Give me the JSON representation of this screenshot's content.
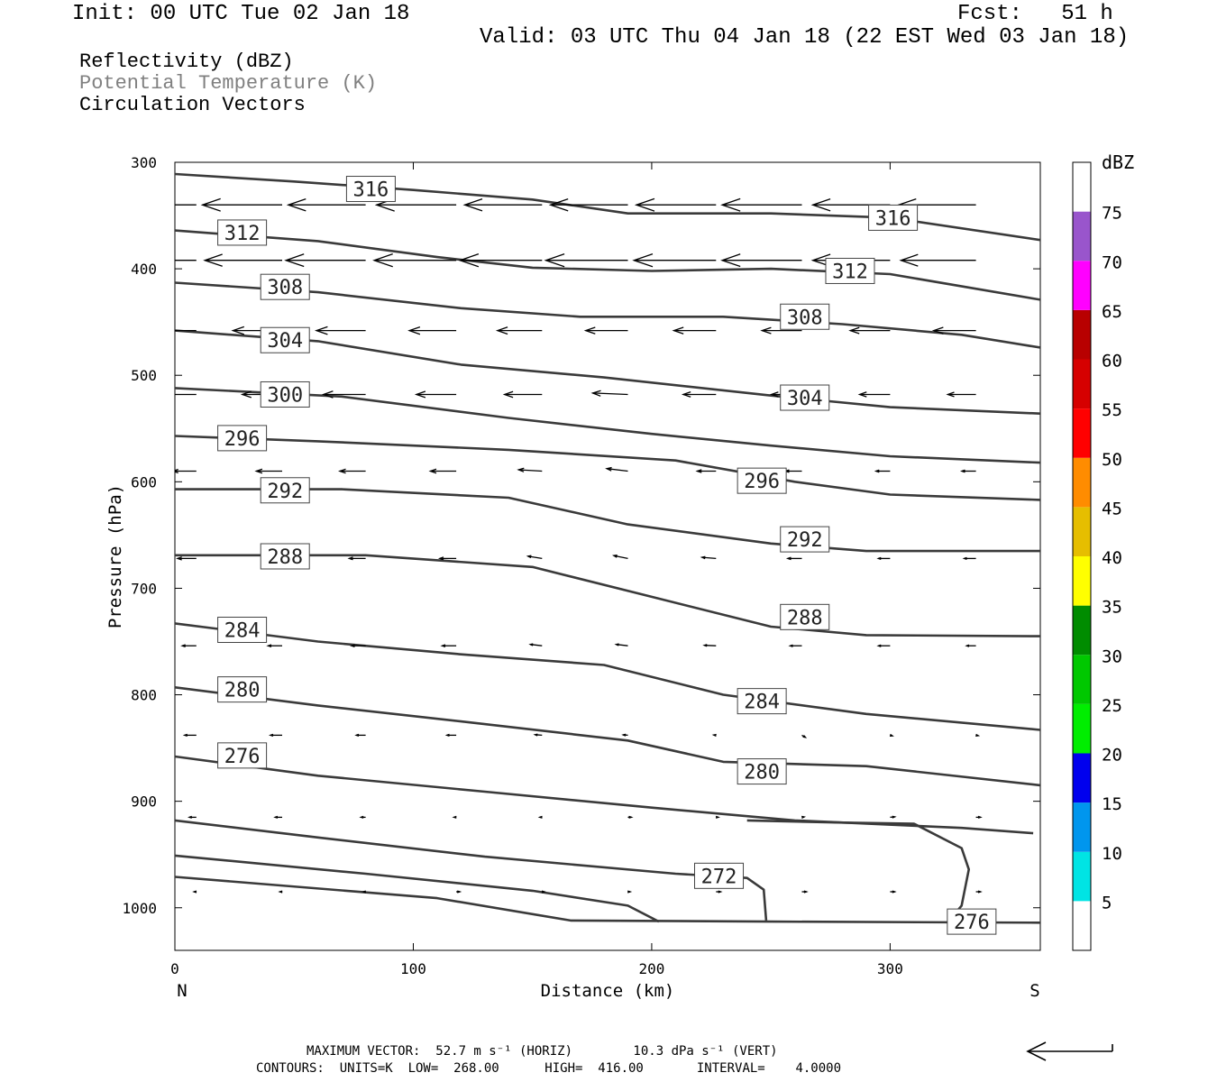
{
  "header": {
    "init": "Init: 00 UTC Tue 02 Jan 18",
    "fcst": "Fcst:   51 h",
    "valid": "Valid: 03 UTC Thu 04 Jan 18 (22 EST Wed 03 Jan 18)"
  },
  "legend": {
    "line1": "Reflectivity (dBZ)",
    "line2": "Potential Temperature (K)",
    "line3": "Circulation Vectors"
  },
  "colors": {
    "contour": "#3a3a3a",
    "legend2": "#808080",
    "vectors": "#000000"
  },
  "chart_data": {
    "type": "contour",
    "xlabel": "Distance (km)",
    "ylabel": "Pressure (hPa)",
    "xlim": [
      0,
      363
    ],
    "ylim": [
      1040,
      300
    ],
    "xticks": [
      0,
      100,
      200,
      300
    ],
    "yticks": [
      300,
      400,
      500,
      600,
      700,
      800,
      900,
      1000
    ],
    "x_end_labels": {
      "left": "N",
      "right": "S"
    },
    "colorbar": {
      "title": "dBZ",
      "levels": [
        5,
        10,
        15,
        20,
        25,
        30,
        35,
        40,
        45,
        50,
        55,
        60,
        65,
        70,
        75
      ],
      "colors": [
        "#00e4e4",
        "#0096ee",
        "#0000ee",
        "#00ee00",
        "#00c800",
        "#008c00",
        "#ffff00",
        "#e6be00",
        "#ff8c00",
        "#ff0000",
        "#d60000",
        "#b80000",
        "#ff00ff",
        "#9955cc",
        "#ffffff"
      ]
    },
    "contours": [
      {
        "label": "316",
        "points": [
          [
            0,
            311
          ],
          [
            50,
            318
          ],
          [
            100,
            326
          ],
          [
            150,
            335
          ],
          [
            190,
            348
          ],
          [
            250,
            348
          ],
          [
            300,
            352
          ],
          [
            363,
            373
          ]
        ],
        "label_positions": [
          [
            72,
            325
          ],
          [
            291,
            352
          ]
        ]
      },
      {
        "label": "312",
        "points": [
          [
            0,
            364
          ],
          [
            60,
            374
          ],
          [
            110,
            389
          ],
          [
            150,
            399
          ],
          [
            200,
            402
          ],
          [
            250,
            400
          ],
          [
            300,
            405
          ],
          [
            363,
            429
          ]
        ],
        "label_positions": [
          [
            18,
            366
          ],
          [
            273,
            402
          ]
        ]
      },
      {
        "label": "308",
        "points": [
          [
            0,
            413
          ],
          [
            60,
            422
          ],
          [
            120,
            437
          ],
          [
            170,
            445
          ],
          [
            230,
            445
          ],
          [
            280,
            452
          ],
          [
            330,
            462
          ],
          [
            363,
            474
          ]
        ],
        "label_positions": [
          [
            36,
            417
          ],
          [
            254,
            445
          ]
        ]
      },
      {
        "label": "304",
        "points": [
          [
            0,
            458
          ],
          [
            60,
            468
          ],
          [
            120,
            490
          ],
          [
            180,
            502
          ],
          [
            250,
            519
          ],
          [
            300,
            530
          ],
          [
            363,
            536
          ]
        ],
        "label_positions": [
          [
            36,
            467
          ],
          [
            254,
            521
          ]
        ]
      },
      {
        "label": "300",
        "points": [
          [
            0,
            512
          ],
          [
            70,
            520
          ],
          [
            140,
            540
          ],
          [
            200,
            555
          ],
          [
            250,
            566
          ],
          [
            300,
            576
          ],
          [
            363,
            582
          ]
        ],
        "label_positions": [
          [
            36,
            518
          ]
        ]
      },
      {
        "label": "296",
        "points": [
          [
            0,
            557
          ],
          [
            60,
            562
          ],
          [
            140,
            570
          ],
          [
            210,
            580
          ],
          [
            260,
            600
          ],
          [
            300,
            612
          ],
          [
            363,
            617
          ]
        ],
        "label_positions": [
          [
            18,
            559
          ],
          [
            236,
            599
          ]
        ]
      },
      {
        "label": "292",
        "points": [
          [
            0,
            607
          ],
          [
            70,
            607
          ],
          [
            140,
            615
          ],
          [
            190,
            640
          ],
          [
            250,
            658
          ],
          [
            290,
            665
          ],
          [
            363,
            665
          ]
        ],
        "label_positions": [
          [
            36,
            608
          ],
          [
            254,
            654
          ]
        ]
      },
      {
        "label": "288",
        "points": [
          [
            0,
            669
          ],
          [
            80,
            669
          ],
          [
            150,
            680
          ],
          [
            200,
            708
          ],
          [
            250,
            736
          ],
          [
            290,
            744
          ],
          [
            363,
            745
          ]
        ],
        "label_positions": [
          [
            36,
            670
          ],
          [
            254,
            727
          ]
        ]
      },
      {
        "label": "284",
        "points": [
          [
            0,
            733
          ],
          [
            60,
            750
          ],
          [
            120,
            762
          ],
          [
            180,
            772
          ],
          [
            230,
            800
          ],
          [
            290,
            818
          ],
          [
            363,
            833
          ]
        ],
        "label_positions": [
          [
            18,
            739
          ],
          [
            236,
            806
          ]
        ]
      },
      {
        "label": "280",
        "points": [
          [
            0,
            793
          ],
          [
            60,
            810
          ],
          [
            120,
            825
          ],
          [
            190,
            843
          ],
          [
            230,
            863
          ],
          [
            290,
            867
          ],
          [
            363,
            885
          ]
        ],
        "label_positions": [
          [
            18,
            795
          ],
          [
            236,
            872
          ]
        ]
      },
      {
        "label": "276",
        "points": [
          [
            0,
            858
          ],
          [
            60,
            876
          ],
          [
            130,
            891
          ],
          [
            200,
            906
          ],
          [
            260,
            918
          ],
          [
            330,
            925
          ],
          [
            360,
            930
          ]
        ],
        "label_positions": [
          [
            18,
            857
          ]
        ]
      },
      {
        "label": "276",
        "points": [
          [
            0,
            971
          ],
          [
            110,
            991
          ],
          [
            166,
            1012
          ],
          [
            250,
            1013
          ],
          [
            363,
            1014
          ]
        ],
        "label_positions": [
          [
            324,
            1013
          ]
        ]
      },
      {
        "label": "272",
        "points": [
          [
            0,
            918
          ],
          [
            60,
            934
          ],
          [
            130,
            952
          ],
          [
            210,
            968
          ],
          [
            240,
            972
          ],
          [
            247,
            983
          ],
          [
            248,
            1012
          ]
        ],
        "label_positions": [
          [
            218,
            970
          ]
        ]
      },
      {
        "label": "",
        "points": [
          [
            0,
            951
          ],
          [
            80,
            968
          ],
          [
            150,
            984
          ],
          [
            190,
            998
          ],
          [
            203,
            1013
          ]
        ],
        "label_positions": []
      },
      {
        "label": "",
        "points": [
          [
            240,
            918
          ],
          [
            280,
            920
          ],
          [
            310,
            921
          ],
          [
            330,
            944
          ],
          [
            333,
            964
          ],
          [
            330,
            998
          ],
          [
            324,
            1014
          ]
        ],
        "label_positions": []
      }
    ],
    "vector_field": {
      "x": [
        9,
        45,
        80,
        118,
        154,
        190,
        227,
        263,
        300,
        336
      ],
      "p": [
        340,
        392,
        458,
        518,
        590,
        672,
        754,
        838,
        915,
        985
      ],
      "u_kms": [
        [
          -36,
          -34,
          -33,
          -34,
          -33,
          -33,
          -34,
          -34,
          -33,
          -33
        ],
        [
          -37,
          -33,
          -34,
          -35,
          -35,
          -35,
          -35,
          -34,
          -33,
          -32
        ],
        [
          -24,
          -21,
          -21,
          -20,
          -19,
          -18,
          -18,
          -17,
          -17,
          -18
        ],
        [
          -18,
          -17,
          -18,
          -17,
          -16,
          -15,
          -14,
          -13,
          -13,
          -12
        ],
        [
          -10,
          -11,
          -11,
          -11,
          -10,
          -9,
          -8,
          -7,
          -6,
          -6
        ],
        [
          -8,
          -7,
          -7,
          -7,
          -6,
          -6,
          -6,
          -6,
          -5,
          -5
        ],
        [
          -6,
          -6,
          -6,
          -6,
          -5,
          -5,
          -5,
          -5,
          -5,
          -4
        ],
        [
          -5,
          -5,
          -4,
          -4,
          -3,
          -2,
          -1,
          0,
          1,
          1
        ],
        [
          -3,
          -3,
          -2,
          -1,
          -1,
          0,
          1,
          1,
          2,
          2
        ],
        [
          -1,
          -1,
          -1,
          0,
          1,
          1,
          2,
          2,
          2,
          2
        ]
      ],
      "v_rel": [
        [
          0,
          0,
          0,
          0,
          0,
          0,
          0,
          0,
          0,
          0
        ],
        [
          0,
          0,
          0,
          0,
          0,
          0,
          0,
          0,
          0,
          0
        ],
        [
          0,
          0,
          0,
          0,
          0,
          0,
          0,
          0,
          0,
          0
        ],
        [
          0,
          0,
          0,
          0,
          0,
          0.1,
          0,
          0,
          0,
          0
        ],
        [
          0,
          0,
          0,
          0,
          0.15,
          0.3,
          0,
          0,
          0,
          0
        ],
        [
          0,
          0,
          0,
          0,
          0.4,
          0.5,
          0.2,
          0,
          0,
          0
        ],
        [
          0,
          0,
          0,
          0,
          0.3,
          0.3,
          0.1,
          0,
          0,
          0
        ],
        [
          0,
          0,
          0,
          0,
          0.2,
          0.2,
          0.2,
          -0.4,
          -0.4,
          -0.3
        ],
        [
          0,
          0,
          0,
          0,
          0,
          0,
          0,
          0.2,
          0.2,
          0
        ],
        [
          0,
          0,
          0,
          0,
          0,
          0,
          0,
          0,
          0,
          0
        ]
      ]
    }
  },
  "footer": {
    "max_vector": "MAXIMUM VECTOR:  52.7 m s⁻¹ (HORIZ)        10.3 dPa s⁻¹ (VERT)",
    "contours": "CONTOURS:  UNITS=K  LOW=  268.00      HIGH=  416.00       INTERVAL=    4.0000"
  }
}
